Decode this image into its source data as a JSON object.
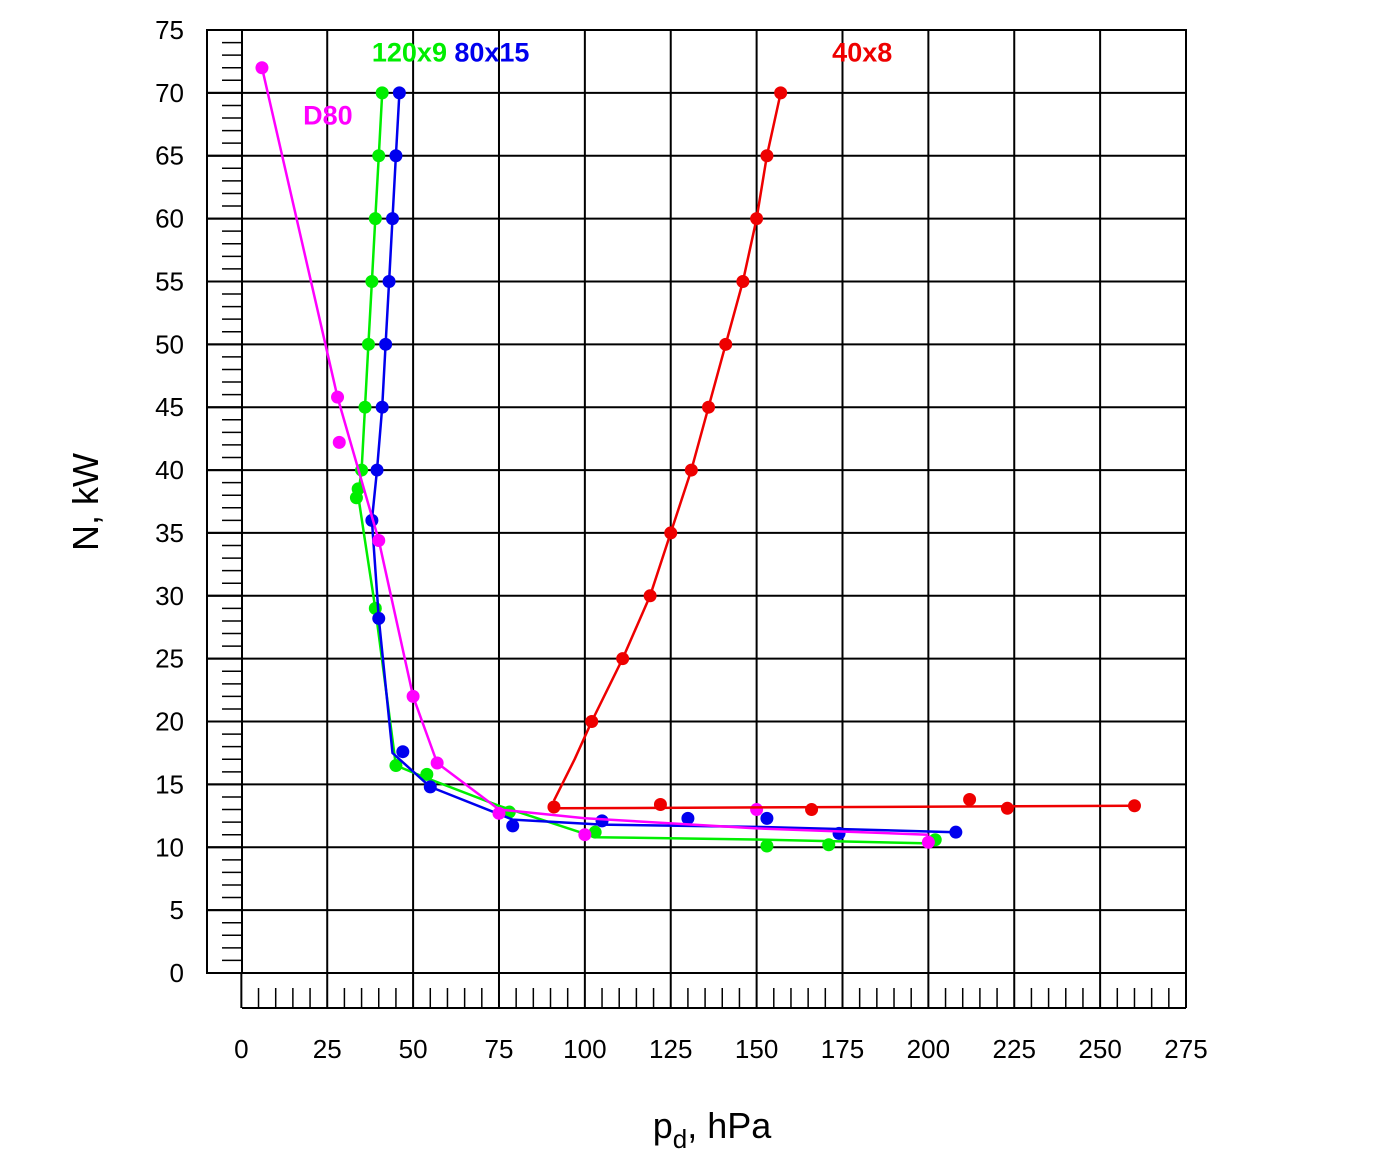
{
  "chart_data": {
    "type": "scatter",
    "title": "",
    "xlabel_main": "p",
    "xlabel_sub": "d",
    "xlabel_unit": ", hPa",
    "ylabel": "N, kW",
    "xlim": [
      -10,
      275
    ],
    "ylim": [
      0,
      75
    ],
    "xticks": [
      0,
      25,
      50,
      75,
      100,
      125,
      150,
      175,
      200,
      225,
      250,
      275
    ],
    "yticks": [
      0,
      5,
      10,
      15,
      20,
      25,
      30,
      35,
      40,
      45,
      50,
      55,
      60,
      65,
      70,
      75
    ],
    "grid": true,
    "series": [
      {
        "name": "120x9",
        "color": "#00ee00",
        "points": [
          [
            41,
            70
          ],
          [
            40,
            65
          ],
          [
            39,
            60
          ],
          [
            38,
            55
          ],
          [
            37,
            50
          ],
          [
            36,
            45
          ],
          [
            35,
            40
          ],
          [
            34,
            38.5
          ],
          [
            33.5,
            37.8
          ],
          [
            39,
            29
          ],
          [
            45,
            16.5
          ],
          [
            54,
            15.8
          ],
          [
            78,
            12.8
          ],
          [
            103,
            11.2
          ],
          [
            153,
            10.1
          ],
          [
            171,
            10.2
          ],
          [
            202,
            10.6
          ]
        ],
        "line": [
          [
            41,
            70
          ],
          [
            40,
            65
          ],
          [
            39,
            60
          ],
          [
            38,
            55
          ],
          [
            37,
            50
          ],
          [
            36,
            45
          ],
          [
            35,
            40
          ],
          [
            34,
            38
          ],
          [
            39,
            29
          ],
          [
            45,
            16.5
          ],
          [
            54,
            15.5
          ],
          [
            75,
            13.3
          ],
          [
            103,
            10.8
          ],
          [
            153,
            10.6
          ],
          [
            202,
            10.3
          ]
        ]
      },
      {
        "name": "80x15",
        "color": "#0000ee",
        "points": [
          [
            46,
            70
          ],
          [
            45,
            65
          ],
          [
            44,
            60
          ],
          [
            43,
            55
          ],
          [
            42,
            50
          ],
          [
            41,
            45
          ],
          [
            39.5,
            40
          ],
          [
            38,
            36
          ],
          [
            40,
            28.2
          ],
          [
            47,
            17.6
          ],
          [
            55,
            14.8
          ],
          [
            79,
            11.7
          ],
          [
            105,
            12.1
          ],
          [
            130,
            12.3
          ],
          [
            153,
            12.3
          ],
          [
            174,
            11.1
          ],
          [
            208,
            11.2
          ]
        ],
        "line": [
          [
            46,
            70
          ],
          [
            45,
            65
          ],
          [
            44,
            60
          ],
          [
            43,
            55
          ],
          [
            42,
            50
          ],
          [
            41,
            45
          ],
          [
            39.5,
            40
          ],
          [
            38,
            36
          ],
          [
            40,
            28.2
          ],
          [
            44,
            17.5
          ],
          [
            55,
            14.8
          ],
          [
            79,
            12.2
          ],
          [
            105,
            11.8
          ],
          [
            153,
            11.6
          ],
          [
            208,
            11.2
          ]
        ]
      },
      {
        "name": "D80",
        "color": "#ff00ff",
        "points": [
          [
            6,
            72
          ],
          [
            28,
            45.8
          ],
          [
            28.5,
            42.2
          ],
          [
            40,
            34.4
          ],
          [
            50,
            22
          ],
          [
            57,
            16.7
          ],
          [
            75,
            12.7
          ],
          [
            100,
            11
          ],
          [
            150,
            13
          ],
          [
            200,
            10.4
          ]
        ],
        "line": [
          [
            6,
            72
          ],
          [
            28,
            45.8
          ],
          [
            40,
            34.4
          ],
          [
            50,
            22
          ],
          [
            57,
            16.7
          ],
          [
            75,
            13
          ],
          [
            100,
            12.3
          ],
          [
            150,
            11.5
          ],
          [
            200,
            11
          ]
        ]
      },
      {
        "name": "40x8",
        "color": "#ee0000",
        "points": [
          [
            157,
            70
          ],
          [
            153,
            65
          ],
          [
            150,
            60
          ],
          [
            146,
            55
          ],
          [
            141,
            50
          ],
          [
            136,
            45
          ],
          [
            131,
            40
          ],
          [
            125,
            35
          ],
          [
            119,
            30
          ],
          [
            111,
            25
          ],
          [
            102,
            20
          ],
          [
            91,
            13.2
          ],
          [
            122,
            13.4
          ],
          [
            166,
            13
          ],
          [
            212,
            13.8
          ],
          [
            223,
            13.1
          ],
          [
            260,
            13.3
          ]
        ],
        "line": [
          [
            91,
            13.7
          ],
          [
            97,
            17
          ],
          [
            102,
            20
          ],
          [
            111,
            25
          ],
          [
            119,
            30
          ],
          [
            125,
            35
          ],
          [
            131,
            40
          ],
          [
            136,
            45
          ],
          [
            141,
            50
          ],
          [
            146,
            55
          ],
          [
            150,
            60
          ],
          [
            153,
            65
          ],
          [
            157,
            70
          ]
        ],
        "line2": [
          [
            91,
            13.1
          ],
          [
            260,
            13.3
          ]
        ]
      }
    ],
    "annotations": [
      {
        "text": "120x9",
        "series": "120x9",
        "at": [
          38,
          72.5
        ],
        "color": "#00ee00"
      },
      {
        "text": "80x15",
        "series": "80x15",
        "at": [
          62,
          72.5
        ],
        "color": "#0000ee"
      },
      {
        "text": "D80",
        "series": "D80",
        "at": [
          18,
          67.5
        ],
        "color": "#ff00ff"
      },
      {
        "text": "40x8",
        "series": "40x8",
        "at": [
          172,
          72.5
        ],
        "color": "#ee0000"
      }
    ]
  }
}
